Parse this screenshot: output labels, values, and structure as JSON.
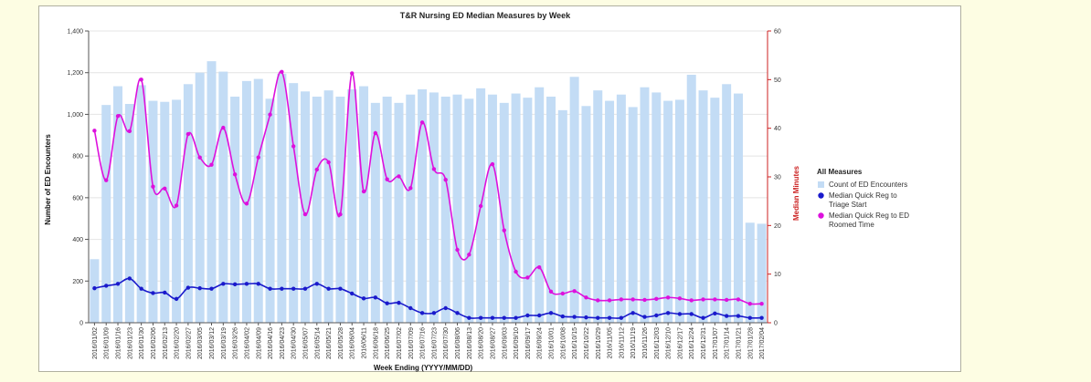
{
  "chart_data": {
    "type": "bar",
    "title": "T&R Nursing ED Median Measures by Week",
    "xlabel": "Week Ending (YYYY/MM/DD)",
    "ylabel_left": "Number of ED Encounters",
    "ylabel_right": "Median Minutes",
    "ylim_left": [
      0,
      1400
    ],
    "ylim_right": [
      0,
      60
    ],
    "yticks_left": [
      "0",
      "200",
      "400",
      "600",
      "800",
      "1,000",
      "1,200",
      "1,400"
    ],
    "yticks_right": [
      "0",
      "10",
      "20",
      "30",
      "40",
      "50",
      "60"
    ],
    "legend_title": "All Measures",
    "legend_position": "right",
    "grid": true,
    "categories": [
      "2016/01/02",
      "2016/01/09",
      "2016/01/16",
      "2016/01/23",
      "2016/01/30",
      "2016/02/06",
      "2016/02/13",
      "2016/02/20",
      "2016/02/27",
      "2016/03/05",
      "2016/03/12",
      "2016/03/19",
      "2016/03/26",
      "2016/04/02",
      "2016/04/09",
      "2016/04/16",
      "2016/04/23",
      "2016/04/30",
      "2016/05/07",
      "2016/05/14",
      "2016/05/21",
      "2016/05/28",
      "2016/06/04",
      "2016/06/11",
      "2016/06/18",
      "2016/06/25",
      "2016/07/02",
      "2016/07/09",
      "2016/07/16",
      "2016/07/23",
      "2016/07/30",
      "2016/08/06",
      "2016/08/13",
      "2016/08/20",
      "2016/08/27",
      "2016/09/03",
      "2016/09/10",
      "2016/09/17",
      "2016/09/24",
      "2016/10/01",
      "2016/10/08",
      "2016/10/15",
      "2016/10/22",
      "2016/10/29",
      "2016/11/05",
      "2016/11/12",
      "2016/11/19",
      "2016/11/26",
      "2016/12/03",
      "2016/12/10",
      "2016/12/17",
      "2016/12/24",
      "2016/12/31",
      "2017/01/07",
      "2017/01/14",
      "2017/01/21",
      "2017/01/28",
      "2017/02/04"
    ],
    "series": [
      {
        "name": "Count of ED Encounters",
        "type": "bar",
        "axis": "left",
        "color": "#c3dcf5",
        "values": [
          305,
          1045,
          1135,
          1050,
          1140,
          1065,
          1060,
          1070,
          1145,
          1200,
          1255,
          1205,
          1085,
          1160,
          1170,
          1075,
          1195,
          1150,
          1110,
          1085,
          1115,
          1085,
          1120,
          1135,
          1055,
          1085,
          1055,
          1095,
          1120,
          1105,
          1085,
          1095,
          1075,
          1125,
          1095,
          1055,
          1100,
          1080,
          1130,
          1085,
          1020,
          1180,
          1040,
          1115,
          1065,
          1095,
          1035,
          1130,
          1105,
          1065,
          1070,
          1190,
          1115,
          1080,
          1145,
          1100,
          480,
          475
        ]
      },
      {
        "name": "Median Quick Reg to Triage Start",
        "type": "line",
        "axis": "right",
        "color": "#1a1acc",
        "values": [
          7.1,
          7.6,
          8.0,
          9.1,
          7.0,
          6.1,
          6.2,
          4.9,
          7.2,
          7.1,
          7.0,
          8.0,
          7.9,
          8.0,
          8.0,
          7.0,
          7.0,
          7.0,
          7.0,
          8.0,
          7.0,
          7.0,
          6.0,
          5.0,
          5.2,
          4.0,
          4.1,
          3.0,
          2.0,
          2.0,
          3.0,
          2.0,
          1.0,
          1.0,
          1.0,
          1.0,
          1.0,
          1.5,
          1.5,
          2.0,
          1.3,
          1.2,
          1.1,
          1.0,
          1.0,
          1.0,
          2.0,
          1.2,
          1.5,
          2.0,
          1.8,
          1.8,
          1.0,
          1.9,
          1.4,
          1.4,
          1.0,
          1.0
        ]
      },
      {
        "name": "Median Quick Reg to ED Roomed Time",
        "type": "line",
        "axis": "right",
        "color": "#dd11dd",
        "values": [
          39.5,
          29.3,
          42.5,
          39.4,
          50.0,
          28.0,
          27.6,
          24.1,
          38.8,
          34.0,
          32.5,
          40.1,
          30.5,
          24.5,
          34.0,
          42.8,
          51.6,
          36.3,
          22.3,
          31.5,
          33.0,
          22.3,
          51.3,
          27.0,
          39.0,
          29.5,
          30.1,
          27.7,
          41.2,
          31.6,
          29.4,
          15.0,
          14.0,
          24.0,
          32.6,
          19.0,
          10.5,
          9.3,
          11.4,
          6.4,
          6.0,
          6.5,
          5.2,
          4.6,
          4.6,
          4.8,
          4.8,
          4.7,
          4.9,
          5.2,
          5.0,
          4.6,
          4.8,
          4.8,
          4.7,
          4.8,
          3.9,
          3.9
        ]
      }
    ]
  }
}
